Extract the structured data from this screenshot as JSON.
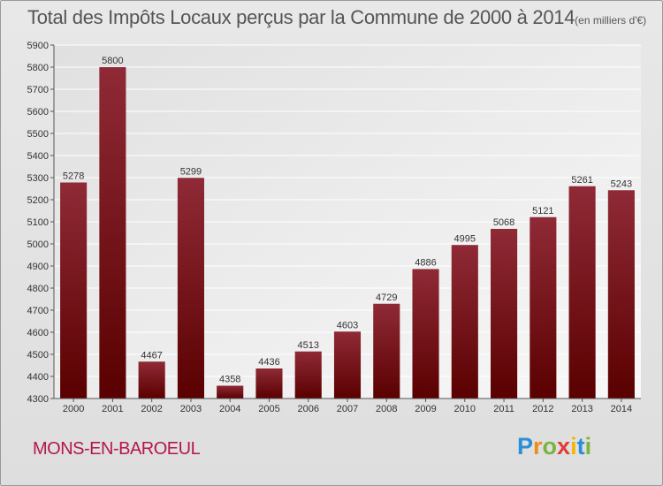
{
  "title": "Total des Impôts Locaux perçus par la Commune de 2000 à 2014",
  "title_unit": "(en milliers d'€)",
  "commune": "MONS-EN-BAROEUL",
  "logo": {
    "letters": [
      "P",
      "r",
      "o",
      "x",
      "i",
      "t",
      "i"
    ],
    "colors": [
      "#2a8fd6",
      "#f08a1c",
      "#7cb342",
      "#e53935",
      "#f2b705",
      "#2a8fd6",
      "#7cb342"
    ]
  },
  "colors": {
    "bar_top": "#8f2a36",
    "bar_bottom": "#5a0000",
    "commune": "#b5164f"
  },
  "chart_data": {
    "type": "bar",
    "title": "Total des Impôts Locaux perçus par la Commune de 2000 à 2014",
    "categories": [
      "2000",
      "2001",
      "2002",
      "2003",
      "2004",
      "2005",
      "2006",
      "2007",
      "2008",
      "2009",
      "2010",
      "2011",
      "2012",
      "2013",
      "2014"
    ],
    "values": [
      5278,
      5800,
      4467,
      5299,
      4358,
      4436,
      4513,
      4603,
      4729,
      4886,
      4995,
      5068,
      5121,
      5261,
      5243
    ],
    "ylim": [
      4300,
      5900
    ],
    "yticks": [
      4300,
      4400,
      4500,
      4600,
      4700,
      4800,
      4900,
      5000,
      5100,
      5200,
      5300,
      5400,
      5500,
      5600,
      5700,
      5800,
      5900
    ],
    "xlabel": "",
    "ylabel": "",
    "grid": true,
    "data_labels": true
  }
}
